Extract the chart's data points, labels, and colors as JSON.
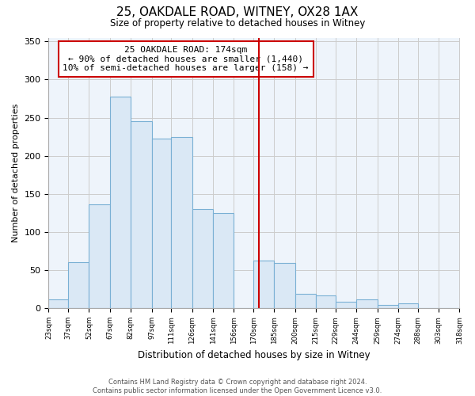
{
  "title": "25, OAKDALE ROAD, WITNEY, OX28 1AX",
  "subtitle": "Size of property relative to detached houses in Witney",
  "xlabel": "Distribution of detached houses by size in Witney",
  "ylabel": "Number of detached properties",
  "bar_left_edges": [
    23,
    37,
    52,
    67,
    82,
    97,
    111,
    126,
    141,
    156,
    170,
    185,
    200,
    215,
    229,
    244,
    259,
    274,
    288,
    303
  ],
  "bar_heights": [
    11,
    60,
    136,
    278,
    245,
    222,
    225,
    130,
    125,
    0,
    62,
    59,
    19,
    17,
    8,
    11,
    4,
    6,
    0,
    0
  ],
  "bar_widths": [
    14,
    15,
    15,
    15,
    15,
    14,
    15,
    15,
    15,
    14,
    15,
    15,
    15,
    14,
    15,
    15,
    15,
    14,
    15,
    15
  ],
  "tick_labels": [
    "23sqm",
    "37sqm",
    "52sqm",
    "67sqm",
    "82sqm",
    "97sqm",
    "111sqm",
    "126sqm",
    "141sqm",
    "156sqm",
    "170sqm",
    "185sqm",
    "200sqm",
    "215sqm",
    "229sqm",
    "244sqm",
    "259sqm",
    "274sqm",
    "288sqm",
    "303sqm",
    "318sqm"
  ],
  "tick_positions": [
    23,
    37,
    52,
    67,
    82,
    97,
    111,
    126,
    141,
    156,
    170,
    185,
    200,
    215,
    229,
    244,
    259,
    274,
    288,
    303,
    318
  ],
  "bar_color": "#dae8f5",
  "bar_edge_color": "#7ab0d4",
  "vline_x": 174,
  "vline_color": "#cc0000",
  "annotation_title": "25 OAKDALE ROAD: 174sqm",
  "annotation_line2": "← 90% of detached houses are smaller (1,440)",
  "annotation_line3": "10% of semi-detached houses are larger (158) →",
  "annotation_box_color": "#ffffff",
  "annotation_box_edge": "#cc0000",
  "ylim": [
    0,
    355
  ],
  "xlim": [
    23,
    318
  ],
  "yticks": [
    0,
    50,
    100,
    150,
    200,
    250,
    300,
    350
  ],
  "footer_line1": "Contains HM Land Registry data © Crown copyright and database right 2024.",
  "footer_line2": "Contains public sector information licensed under the Open Government Licence v3.0.",
  "background_color": "#ffffff",
  "grid_color": "#cccccc",
  "bg_plot": "#eef4fb"
}
